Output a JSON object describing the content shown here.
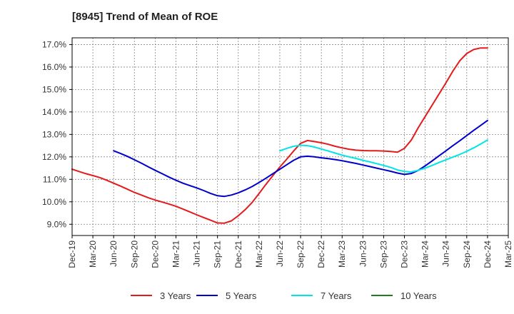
{
  "chart_data": {
    "type": "line",
    "title": "[8945]  Trend of Mean of ROE",
    "xlabel": "",
    "ylabel": "",
    "ylim": [
      8.5,
      17.3
    ],
    "y_ticks": [
      9.0,
      10.0,
      11.0,
      12.0,
      13.0,
      14.0,
      15.0,
      16.0,
      17.0
    ],
    "y_tick_labels": [
      "9.0%",
      "10.0%",
      "11.0%",
      "12.0%",
      "13.0%",
      "14.0%",
      "15.0%",
      "16.0%",
      "17.0%"
    ],
    "x_ticks": [
      "Dec-19",
      "Mar-20",
      "Jun-20",
      "Sep-20",
      "Dec-20",
      "Mar-21",
      "Jun-21",
      "Sep-21",
      "Dec-21",
      "Mar-22",
      "Jun-22",
      "Sep-22",
      "Dec-22",
      "Mar-23",
      "Jun-23",
      "Sep-23",
      "Dec-23",
      "Mar-24",
      "Jun-24",
      "Sep-24",
      "Dec-24",
      "Mar-25"
    ],
    "grid": true,
    "legend_position": "bottom",
    "series": [
      {
        "name": "3 Years",
        "color": "#e41a1c",
        "x": [
          "Dec-19",
          "Jan-20",
          "Feb-20",
          "Mar-20",
          "Apr-20",
          "May-20",
          "Jun-20",
          "Jul-20",
          "Aug-20",
          "Sep-20",
          "Oct-20",
          "Nov-20",
          "Dec-20",
          "Jan-21",
          "Feb-21",
          "Mar-21",
          "Apr-21",
          "May-21",
          "Jun-21",
          "Jul-21",
          "Aug-21",
          "Sep-21",
          "Oct-21",
          "Nov-21",
          "Dec-21",
          "Jan-22",
          "Feb-22",
          "Mar-22",
          "Apr-22",
          "May-22",
          "Jun-22",
          "Jul-22",
          "Aug-22",
          "Sep-22",
          "Oct-22",
          "Nov-22",
          "Dec-22",
          "Jan-23",
          "Feb-23",
          "Mar-23",
          "Apr-23",
          "May-23",
          "Jun-23",
          "Jul-23",
          "Aug-23",
          "Sep-23",
          "Oct-23",
          "Nov-23",
          "Dec-23",
          "Jan-24",
          "Feb-24",
          "Mar-24",
          "Apr-24",
          "May-24",
          "Jun-24",
          "Jul-24",
          "Aug-24",
          "Sep-24",
          "Oct-24",
          "Nov-24",
          "Dec-24"
        ],
        "values": [
          11.45,
          11.35,
          11.25,
          11.17,
          11.08,
          10.96,
          10.83,
          10.7,
          10.56,
          10.42,
          10.3,
          10.18,
          10.08,
          9.99,
          9.9,
          9.8,
          9.68,
          9.55,
          9.42,
          9.3,
          9.18,
          9.06,
          9.05,
          9.15,
          9.38,
          9.65,
          9.97,
          10.37,
          10.78,
          11.17,
          11.55,
          11.9,
          12.26,
          12.6,
          12.73,
          12.68,
          12.63,
          12.56,
          12.47,
          12.4,
          12.34,
          12.3,
          12.28,
          12.27,
          12.27,
          12.26,
          12.24,
          12.21,
          12.38,
          12.75,
          13.3,
          13.8,
          14.3,
          14.8,
          15.3,
          15.82,
          16.28,
          16.6,
          16.78,
          16.85,
          16.85
        ]
      },
      {
        "name": "5 Years",
        "color": "#0000cc",
        "x": [
          "Jun-20",
          "Jul-20",
          "Aug-20",
          "Sep-20",
          "Oct-20",
          "Nov-20",
          "Dec-20",
          "Jan-21",
          "Feb-21",
          "Mar-21",
          "Apr-21",
          "May-21",
          "Jun-21",
          "Jul-21",
          "Aug-21",
          "Sep-21",
          "Oct-21",
          "Nov-21",
          "Dec-21",
          "Jan-22",
          "Feb-22",
          "Mar-22",
          "Apr-22",
          "May-22",
          "Jun-22",
          "Jul-22",
          "Aug-22",
          "Sep-22",
          "Oct-22",
          "Nov-22",
          "Dec-22",
          "Jan-23",
          "Feb-23",
          "Mar-23",
          "Apr-23",
          "May-23",
          "Jun-23",
          "Jul-23",
          "Aug-23",
          "Sep-23",
          "Oct-23",
          "Nov-23",
          "Dec-23",
          "Jan-24",
          "Feb-24",
          "Mar-24",
          "Apr-24",
          "May-24",
          "Jun-24",
          "Jul-24",
          "Aug-24",
          "Sep-24",
          "Oct-24",
          "Nov-24",
          "Dec-24"
        ],
        "values": [
          12.27,
          12.15,
          12.02,
          11.87,
          11.72,
          11.56,
          11.4,
          11.25,
          11.1,
          10.96,
          10.83,
          10.72,
          10.62,
          10.5,
          10.37,
          10.27,
          10.24,
          10.3,
          10.4,
          10.53,
          10.68,
          10.86,
          11.05,
          11.25,
          11.45,
          11.65,
          11.85,
          12.0,
          12.03,
          12.0,
          11.96,
          11.92,
          11.88,
          11.83,
          11.77,
          11.71,
          11.64,
          11.57,
          11.5,
          11.43,
          11.36,
          11.28,
          11.22,
          11.26,
          11.4,
          11.6,
          11.82,
          12.05,
          12.27,
          12.5,
          12.72,
          12.95,
          13.18,
          13.4,
          13.62
        ]
      },
      {
        "name": "7 Years",
        "color": "#00e5e5",
        "x": [
          "Jun-22",
          "Jul-22",
          "Aug-22",
          "Sep-22",
          "Oct-22",
          "Nov-22",
          "Dec-22",
          "Jan-23",
          "Feb-23",
          "Mar-23",
          "Apr-23",
          "May-23",
          "Jun-23",
          "Jul-23",
          "Aug-23",
          "Sep-23",
          "Oct-23",
          "Nov-23",
          "Dec-23",
          "Jan-24",
          "Feb-24",
          "Mar-24",
          "Apr-24",
          "May-24",
          "Jun-24",
          "Jul-24",
          "Aug-24",
          "Sep-24",
          "Oct-24",
          "Nov-24",
          "Dec-24"
        ],
        "values": [
          12.27,
          12.38,
          12.47,
          12.52,
          12.5,
          12.44,
          12.35,
          12.26,
          12.17,
          12.08,
          12.0,
          11.93,
          11.85,
          11.78,
          11.7,
          11.62,
          11.53,
          11.42,
          11.35,
          11.33,
          11.4,
          11.5,
          11.62,
          11.75,
          11.87,
          11.99,
          12.11,
          12.25,
          12.4,
          12.57,
          12.75
        ]
      },
      {
        "name": "10 Years",
        "color": "#1e7d1e",
        "x": [],
        "values": []
      }
    ]
  }
}
